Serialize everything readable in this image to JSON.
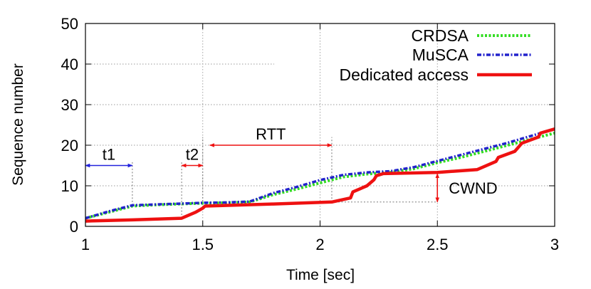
{
  "chart_data": {
    "type": "line",
    "xlabel": "Time [sec]",
    "ylabel": "Sequence number",
    "xlim": [
      1,
      3
    ],
    "ylim": [
      0,
      50
    ],
    "xticks": [
      {
        "value": 1,
        "label": "1"
      },
      {
        "value": 1.5,
        "label": "1.5"
      },
      {
        "value": 2,
        "label": "2"
      },
      {
        "value": 2.5,
        "label": "2.5"
      },
      {
        "value": 3,
        "label": "3"
      }
    ],
    "yticks": [
      {
        "value": 0,
        "label": "0"
      },
      {
        "value": 10,
        "label": "10"
      },
      {
        "value": 20,
        "label": "20"
      },
      {
        "value": 30,
        "label": "30"
      },
      {
        "value": 40,
        "label": "40"
      },
      {
        "value": 50,
        "label": "50"
      }
    ],
    "grid": true,
    "legend_position": "top-right",
    "series": [
      {
        "name": "CRDSA",
        "color": "#33dd22",
        "style": "dotted",
        "points": [
          [
            1,
            2
          ],
          [
            1.1,
            3.5
          ],
          [
            1.2,
            5
          ],
          [
            1.3,
            5.3
          ],
          [
            1.4,
            5.5
          ],
          [
            1.5,
            5.7
          ],
          [
            1.6,
            5.8
          ],
          [
            1.7,
            6
          ],
          [
            1.8,
            7.8
          ],
          [
            1.9,
            9.2
          ],
          [
            2,
            10.7
          ],
          [
            2.1,
            12.2
          ],
          [
            2.2,
            12.9
          ],
          [
            2.3,
            13.3
          ],
          [
            2.4,
            14.2
          ],
          [
            2.5,
            15.7
          ],
          [
            2.6,
            17
          ],
          [
            2.7,
            18.5
          ],
          [
            2.8,
            20
          ],
          [
            2.9,
            21.5
          ],
          [
            3,
            23
          ]
        ]
      },
      {
        "name": "MuSCA",
        "color": "#2222cc",
        "style": "dash-dot",
        "points": [
          [
            1,
            2
          ],
          [
            1.1,
            3.7
          ],
          [
            1.2,
            5.2
          ],
          [
            1.3,
            5.4
          ],
          [
            1.4,
            5.6
          ],
          [
            1.5,
            5.8
          ],
          [
            1.6,
            5.9
          ],
          [
            1.7,
            6.1
          ],
          [
            1.8,
            8.2
          ],
          [
            1.9,
            9.7
          ],
          [
            2,
            11.4
          ],
          [
            2.1,
            12.7
          ],
          [
            2.2,
            13.3
          ],
          [
            2.3,
            13.6
          ],
          [
            2.4,
            14.6
          ],
          [
            2.5,
            16.1
          ],
          [
            2.6,
            17.6
          ],
          [
            2.7,
            19.1
          ],
          [
            2.8,
            20.6
          ],
          [
            2.9,
            22.3
          ],
          [
            3,
            24
          ]
        ]
      },
      {
        "name": "Dedicated access",
        "color": "#ee1111",
        "style": "solid",
        "points": [
          [
            1,
            1.3
          ],
          [
            1.2,
            1.6
          ],
          [
            1.41,
            2
          ],
          [
            1.47,
            3.5
          ],
          [
            1.5,
            4.5
          ],
          [
            1.51,
            5
          ],
          [
            1.8,
            5.5
          ],
          [
            2.05,
            6
          ],
          [
            2.13,
            7
          ],
          [
            2.14,
            8.5
          ],
          [
            2.2,
            10
          ],
          [
            2.23,
            11.5
          ],
          [
            2.24,
            12.5
          ],
          [
            2.27,
            13
          ],
          [
            2.5,
            13.3
          ],
          [
            2.67,
            14
          ],
          [
            2.75,
            16
          ],
          [
            2.76,
            17
          ],
          [
            2.83,
            18.5
          ],
          [
            2.86,
            20.5
          ],
          [
            2.93,
            22
          ],
          [
            2.94,
            23
          ],
          [
            3,
            24
          ]
        ]
      }
    ],
    "annotations": [
      {
        "label": "t1",
        "from": [
          1,
          15
        ],
        "to": [
          1.2,
          15
        ],
        "color": "#2222dd"
      },
      {
        "label": "t2",
        "from": [
          1.41,
          15
        ],
        "to": [
          1.5,
          15
        ],
        "color": "#ee1111"
      },
      {
        "label": "RTT",
        "from": [
          1.53,
          20
        ],
        "to": [
          2.05,
          20
        ],
        "color": "#ee1111"
      },
      {
        "label": "CWND",
        "from": [
          2.5,
          6
        ],
        "to": [
          2.5,
          13
        ],
        "color": "#ee1111"
      }
    ]
  }
}
